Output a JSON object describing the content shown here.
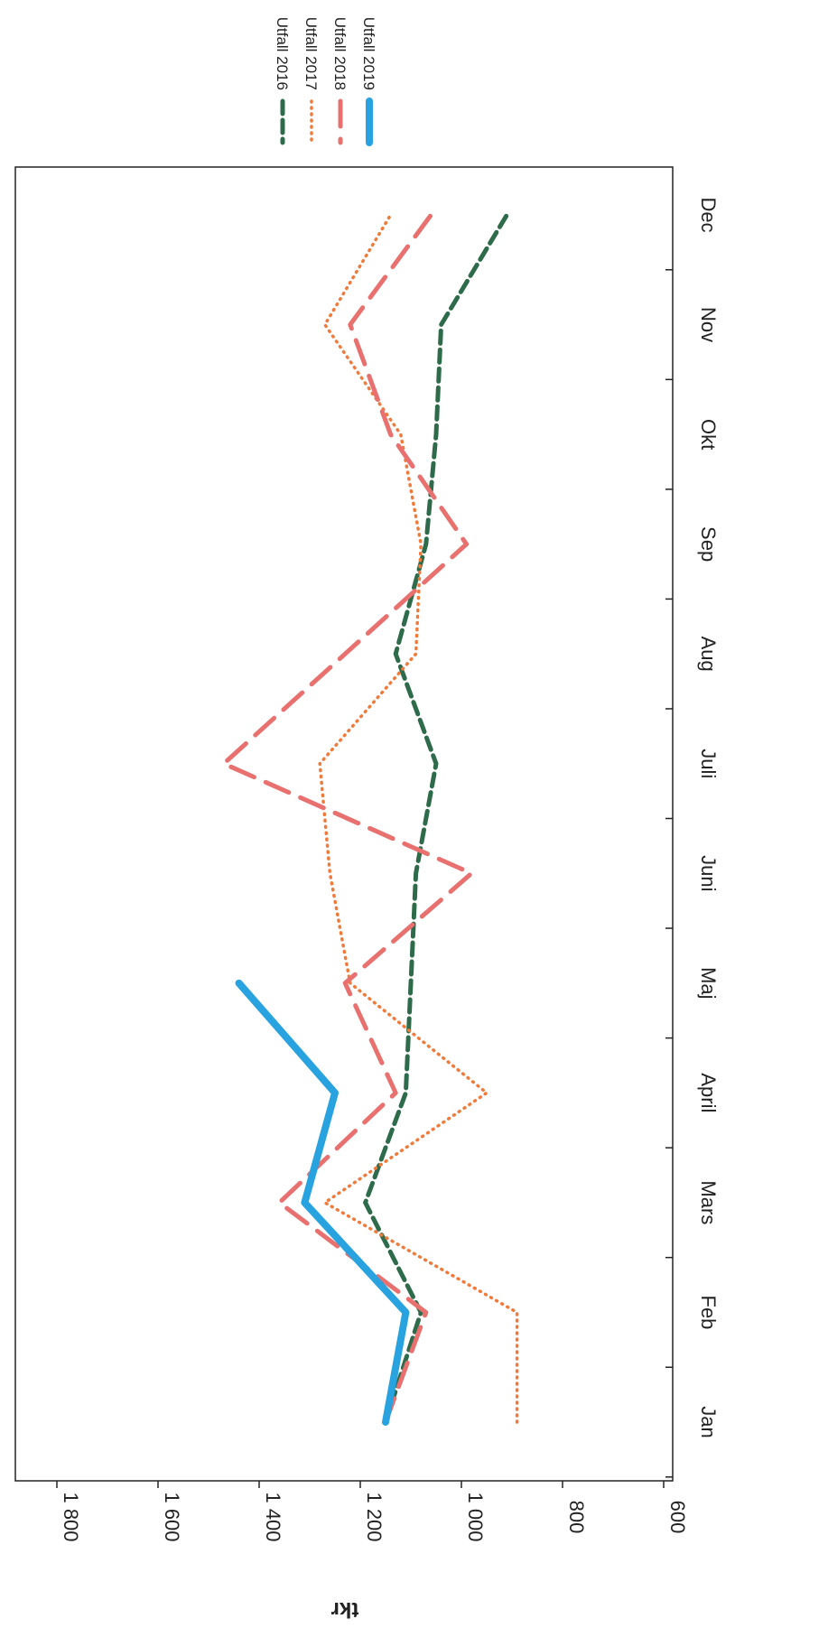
{
  "chart_data": {
    "type": "line",
    "title": "",
    "xlabel": "",
    "ylabel": "tkr",
    "ylim": [
      600,
      1800
    ],
    "yticks": [
      600,
      800,
      1000,
      1200,
      1400,
      1600,
      1800
    ],
    "ytick_labels": [
      "600",
      "800",
      "1 000",
      "1 200",
      "1 400",
      "1 600",
      "1 800"
    ],
    "categories": [
      "Jan",
      "Feb",
      "Mars",
      "April",
      "Maj",
      "Juni",
      "Juli",
      "Aug",
      "Sep",
      "Okt",
      "Nov",
      "Dec"
    ],
    "grid": false,
    "legend_position": "right",
    "series": [
      {
        "name": "Utfall 2016",
        "color": "#2e6b4a",
        "style": "dashed",
        "values": [
          1150,
          1080,
          1190,
          1110,
          1100,
          1090,
          1050,
          1130,
          1070,
          1050,
          1040,
          910
        ]
      },
      {
        "name": "Utfall 2017",
        "color": "#f07a3a",
        "style": "dotted",
        "values": [
          890,
          890,
          1270,
          950,
          1220,
          1260,
          1280,
          1090,
          1080,
          1120,
          1270,
          1140
        ]
      },
      {
        "name": "Utfall 2018",
        "color": "#e8706e",
        "style": "longdash",
        "values": [
          1150,
          1070,
          1360,
          1130,
          1230,
          980,
          1470,
          1230,
          990,
          1140,
          1220,
          1060
        ]
      },
      {
        "name": "Utfall 2019",
        "color": "#29a3e0",
        "style": "solid",
        "values": [
          1150,
          1110,
          1310,
          1250,
          1440,
          null,
          null,
          null,
          null,
          null,
          null,
          null
        ]
      }
    ]
  }
}
